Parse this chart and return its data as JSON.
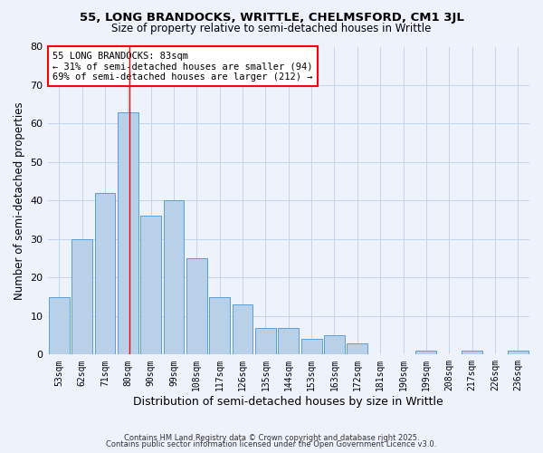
{
  "title": "55, LONG BRANDOCKS, WRITTLE, CHELMSFORD, CM1 3JL",
  "subtitle": "Size of property relative to semi-detached houses in Writtle",
  "xlabel": "Distribution of semi-detached houses by size in Writtle",
  "ylabel": "Number of semi-detached properties",
  "bins": [
    "53sqm",
    "62sqm",
    "71sqm",
    "80sqm",
    "90sqm",
    "99sqm",
    "108sqm",
    "117sqm",
    "126sqm",
    "135sqm",
    "144sqm",
    "153sqm",
    "163sqm",
    "172sqm",
    "181sqm",
    "190sqm",
    "199sqm",
    "208sqm",
    "217sqm",
    "226sqm",
    "236sqm"
  ],
  "values": [
    15,
    30,
    42,
    63,
    36,
    40,
    25,
    15,
    13,
    7,
    7,
    4,
    5,
    3,
    0,
    0,
    1,
    0,
    1,
    0,
    1
  ],
  "bar_color": "#b8d0e8",
  "bar_edge_color": "#5a9fd4",
  "red_line_bin_index": 3,
  "annotation_title": "55 LONG BRANDOCKS: 83sqm",
  "annotation_line1": "← 31% of semi-detached houses are smaller (94)",
  "annotation_line2": "69% of semi-detached houses are larger (212) →",
  "ylim": [
    0,
    80
  ],
  "yticks": [
    0,
    10,
    20,
    30,
    40,
    50,
    60,
    70,
    80
  ],
  "footer1": "Contains HM Land Registry data © Crown copyright and database right 2025.",
  "footer2": "Contains public sector information licensed under the Open Government Licence v3.0.",
  "background_color": "#eef2fb",
  "grid_color": "#c5d5ee"
}
